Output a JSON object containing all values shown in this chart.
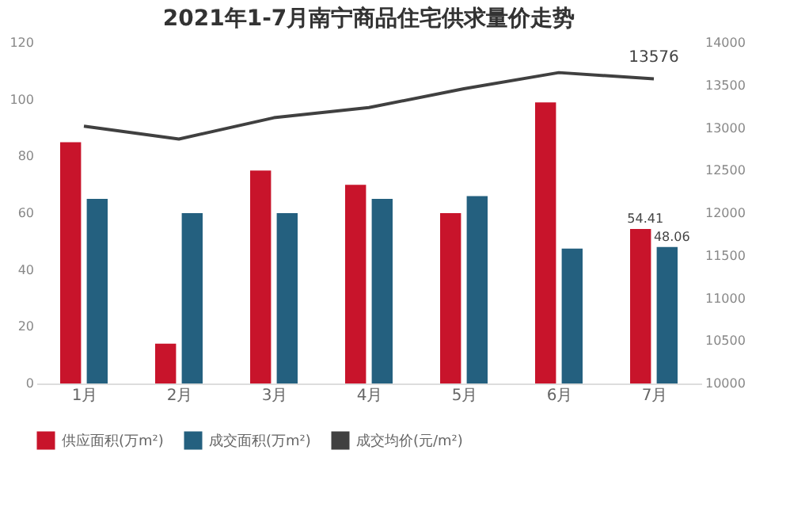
{
  "chart_data": {
    "type": "bar",
    "title": "2021年1-7月南宁商品住宅供求量价走势",
    "categories": [
      "1月",
      "2月",
      "3月",
      "4月",
      "5月",
      "6月",
      "7月"
    ],
    "series": [
      {
        "name": "供应面积(万m²)",
        "color": "#c8142b",
        "values": [
          85,
          14,
          75,
          70,
          60,
          99,
          54.41
        ],
        "value_labels": [
          null,
          null,
          null,
          null,
          null,
          null,
          "54.41"
        ]
      },
      {
        "name": "成交面积(万m²)",
        "color": "#24607f",
        "values": [
          65,
          60,
          60,
          65,
          66,
          47.5,
          48.06
        ],
        "value_labels": [
          null,
          null,
          null,
          null,
          null,
          null,
          "48.06"
        ]
      },
      {
        "name": "成交均价(元/m²)",
        "type": "line",
        "axis": "y2",
        "color": "#404040",
        "values": [
          13020,
          12870,
          13120,
          13240,
          13460,
          13650,
          13576
        ],
        "value_labels": [
          null,
          null,
          null,
          null,
          null,
          null,
          "13576"
        ]
      }
    ],
    "ylim": [
      0,
      120
    ],
    "yticks": [
      0,
      20,
      40,
      60,
      80,
      100,
      120
    ],
    "y2lim": [
      10000,
      14000
    ],
    "y2ticks": [
      10000,
      10500,
      11000,
      11500,
      12000,
      12500,
      13000,
      13500,
      14000
    ],
    "grid": false,
    "legend": "bottom"
  }
}
